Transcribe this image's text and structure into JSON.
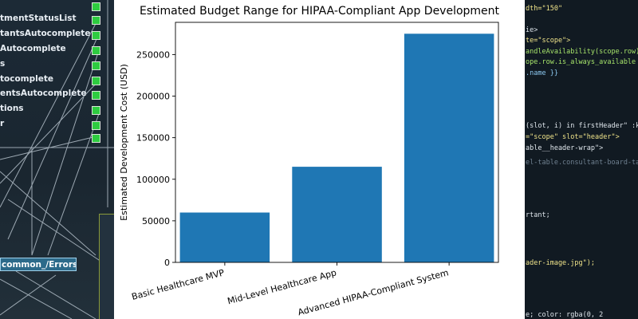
{
  "background_left": {
    "items": [
      "tmentStatusList",
      "tantsAutocomplete",
      "Autocomplete",
      "s",
      "tocomplete",
      "entsAutocomplete",
      "tions",
      "r"
    ],
    "file_label": "common_/Errors.js"
  },
  "background_right": {
    "lines": [
      {
        "text": "dth=\"150\"",
        "color": "#f0e48a"
      },
      {
        "text": "ie>",
        "color": "#dfe6ec"
      },
      {
        "text": "te=\"scope\">",
        "color": "#f0e48a"
      },
      {
        "text": "andleAvailability(scope.row)\"",
        "color": "#a6e36a"
      },
      {
        "text": "ope.row.is_always_available ? 'always_f",
        "color": "#a6e36a"
      },
      {
        "text": ".name }}",
        "color": "#8cc8f0"
      },
      {
        "text": "(slot, i) in firstHeader\" :key=\"slot.la",
        "color": "#dfe6ec"
      },
      {
        "text": "=\"scope\" slot=\"header\">",
        "color": "#f0e48a"
      },
      {
        "text": "able__header-wrap\">",
        "color": "#dfe6ec"
      },
      {
        "text": "el-table.consultant-board-table",
        "color": "#6f8090"
      },
      {
        "text": "rtant;",
        "color": "#dfe6ec"
      },
      {
        "text": "ader-image.jpg\");",
        "color": "#f0e48a"
      },
      {
        "text": "e; color: rgba(0, 2",
        "color": "#dfe6ec"
      }
    ]
  },
  "chart_data": {
    "type": "bar",
    "title": "Estimated Budget Range for HIPAA-Compliant App Development",
    "xlabel": "",
    "ylabel": "Estimated Development Cost (USD)",
    "categories": [
      "Basic Healthcare MVP",
      "Mid-Level Healthcare App",
      "Advanced HIPAA-Compliant System"
    ],
    "values": [
      60000,
      115000,
      275000
    ],
    "ylim": [
      0,
      288750
    ],
    "yticks": [
      0,
      50000,
      100000,
      150000,
      200000,
      250000
    ],
    "bar_color": "#1f77b4",
    "grid": false,
    "legend": "none"
  }
}
